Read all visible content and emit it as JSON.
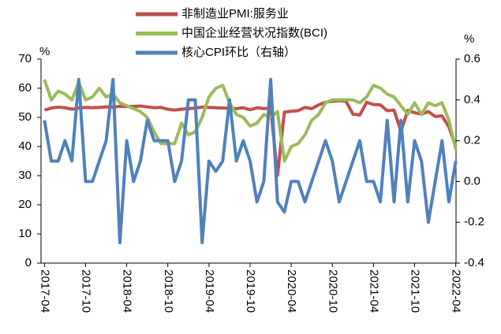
{
  "chart_data": {
    "type": "line",
    "y_label": "%",
    "y2_label": "%",
    "categories": [
      "2017-04",
      null,
      null,
      null,
      null,
      null,
      "2017-10",
      null,
      null,
      null,
      null,
      null,
      "2018-04",
      null,
      null,
      null,
      null,
      null,
      "2018-10",
      null,
      null,
      null,
      null,
      null,
      "2019-04",
      null,
      null,
      null,
      null,
      null,
      "2019-10",
      null,
      null,
      null,
      null,
      null,
      "2020-04",
      null,
      null,
      null,
      null,
      null,
      "2020-10",
      null,
      null,
      null,
      null,
      null,
      "2021-04",
      null,
      null,
      null,
      null,
      null,
      "2021-10",
      null,
      null,
      null,
      null,
      null,
      "2022-04"
    ],
    "series": [
      {
        "name": "非制造业PMI:服务业",
        "color": "#c0504d",
        "values": [
          52.5,
          53.2,
          53.5,
          53.3,
          52.8,
          53.2,
          53.4,
          53.3,
          53.4,
          53.6,
          53.5,
          53.8,
          53.7,
          53.8,
          53.9,
          53.6,
          53.3,
          53.4,
          52.8,
          52.5,
          52.8,
          53.0,
          53.2,
          53.5,
          53.4,
          53.3,
          53.2,
          53.1,
          53.0,
          53.3,
          52.6,
          53.3,
          53.0,
          53.2,
          30.1,
          51.8,
          52.1,
          52.3,
          53.4,
          53.0,
          54.3,
          55.2,
          55.5,
          55.7,
          55.5,
          51.1,
          50.8,
          55.2,
          54.4,
          54.3,
          52.3,
          52.5,
          45.2,
          52.4,
          51.6,
          51.1,
          52.0,
          50.3,
          50.5,
          46.7,
          40.0
        ]
      },
      {
        "name": "中国企业经营状况指数(BCI)",
        "color": "#9bbb59",
        "values": [
          63,
          56,
          59,
          58,
          56,
          62,
          56,
          57,
          60,
          57,
          58,
          55,
          54,
          53,
          52,
          50,
          45,
          41,
          41,
          41,
          48,
          44,
          45,
          50,
          57,
          60,
          61,
          55,
          51,
          50,
          47,
          48,
          51,
          50,
          52,
          35,
          40,
          41,
          44,
          49,
          51,
          55,
          56,
          56,
          56,
          56,
          55,
          57,
          61,
          60,
          58,
          57,
          54,
          51,
          55,
          51,
          55,
          54,
          55,
          49,
          39
        ]
      },
      {
        "name": "核心CPI环比（右轴）",
        "color": "#4f81bd",
        "axis": "y2",
        "values": [
          0.3,
          0.1,
          0.1,
          0.2,
          0.1,
          0.5,
          0.0,
          0.0,
          0.1,
          0.2,
          0.5,
          -0.3,
          0.2,
          0.0,
          0.1,
          0.3,
          0.2,
          0.2,
          0.2,
          0.0,
          0.1,
          0.4,
          0.4,
          -0.3,
          0.1,
          0.05,
          0.1,
          0.4,
          0.1,
          0.2,
          0.1,
          -0.1,
          0.0,
          0.5,
          -0.1,
          -0.15,
          0.0,
          0.0,
          -0.1,
          0.0,
          0.1,
          0.2,
          0.1,
          -0.1,
          0.0,
          0.1,
          0.2,
          0.0,
          0.0,
          -0.1,
          0.3,
          -0.1,
          0.3,
          -0.1,
          0.2,
          0.1,
          -0.2,
          0.0,
          0.2,
          -0.1,
          0.1
        ]
      }
    ],
    "ylim": [
      0,
      70
    ],
    "yticks": [
      0,
      10,
      20,
      30,
      40,
      50,
      60,
      70
    ],
    "y2lim": [
      -0.4,
      0.6
    ],
    "y2ticks": [
      -0.4,
      -0.2,
      {
        "value": 0,
        "label": "0.0"
      },
      0.2,
      0.4,
      0.6
    ]
  }
}
